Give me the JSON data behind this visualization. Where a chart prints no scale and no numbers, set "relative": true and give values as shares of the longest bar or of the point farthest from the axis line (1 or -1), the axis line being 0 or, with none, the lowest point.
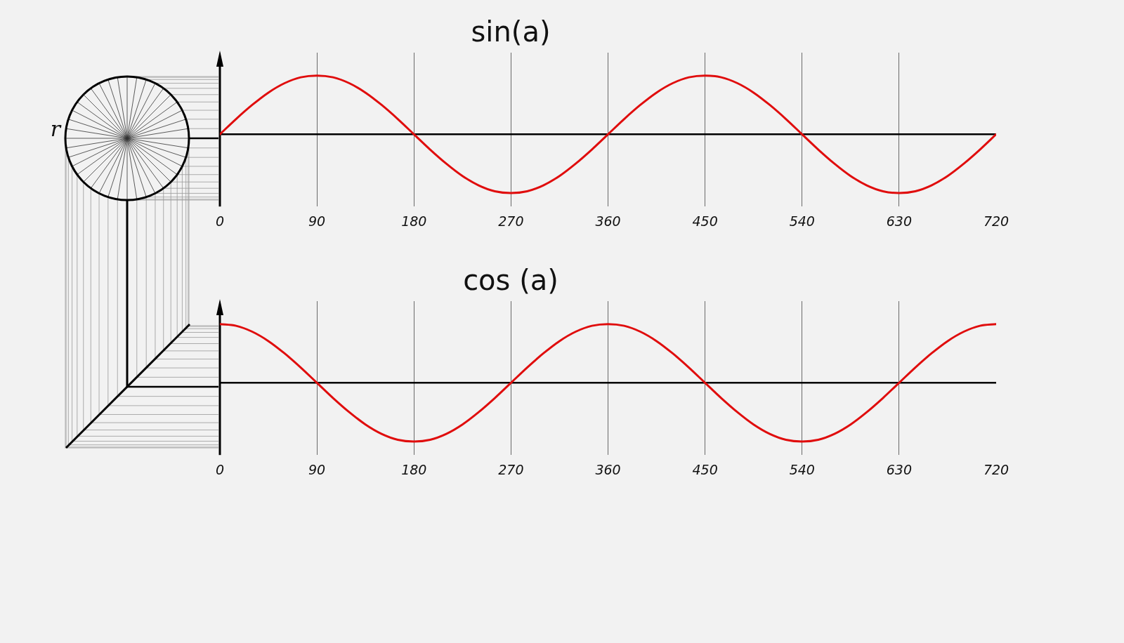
{
  "chart_data": [
    {
      "type": "line",
      "title": "sin(a)",
      "relative": true,
      "grid": "x",
      "xlim": [
        0,
        720
      ],
      "xticks": [
        0,
        90,
        180,
        270,
        360,
        450,
        540,
        630,
        720
      ],
      "annotations": [
        "r"
      ],
      "x": [
        0,
        15,
        30,
        45,
        60,
        75,
        90,
        105,
        120,
        135,
        150,
        165,
        180,
        195,
        210,
        225,
        240,
        255,
        270,
        285,
        300,
        315,
        330,
        345,
        360,
        375,
        390,
        405,
        420,
        435,
        450,
        465,
        480,
        495,
        510,
        525,
        540,
        555,
        570,
        585,
        600,
        615,
        630,
        645,
        660,
        675,
        690,
        705,
        720
      ],
      "series": [
        {
          "color": "#e00d0d",
          "values": [
            0,
            0.26,
            0.5,
            0.71,
            0.87,
            0.97,
            1,
            0.97,
            0.87,
            0.71,
            0.5,
            0.26,
            0,
            -0.26,
            -0.5,
            -0.71,
            -0.87,
            -0.97,
            -1,
            -0.97,
            -0.87,
            -0.71,
            -0.5,
            -0.26,
            0,
            0.26,
            0.5,
            0.71,
            0.87,
            0.97,
            1,
            0.97,
            0.87,
            0.71,
            0.5,
            0.26,
            0,
            -0.26,
            -0.5,
            -0.71,
            -0.87,
            -0.97,
            -1,
            -0.97,
            -0.87,
            -0.71,
            -0.5,
            -0.26,
            0
          ]
        }
      ]
    },
    {
      "type": "line",
      "title": "cos (a)",
      "relative": true,
      "grid": "x",
      "xlim": [
        0,
        720
      ],
      "xticks": [
        0,
        90,
        180,
        270,
        360,
        450,
        540,
        630,
        720
      ],
      "x": [
        0,
        15,
        30,
        45,
        60,
        75,
        90,
        105,
        120,
        135,
        150,
        165,
        180,
        195,
        210,
        225,
        240,
        255,
        270,
        285,
        300,
        315,
        330,
        345,
        360,
        375,
        390,
        405,
        420,
        435,
        450,
        465,
        480,
        495,
        510,
        525,
        540,
        555,
        570,
        585,
        600,
        615,
        630,
        645,
        660,
        675,
        690,
        705,
        720
      ],
      "series": [
        {
          "color": "#e00d0d",
          "values": [
            1,
            0.97,
            0.87,
            0.71,
            0.5,
            0.26,
            0,
            -0.26,
            -0.5,
            -0.71,
            -0.87,
            -0.97,
            -1,
            -0.97,
            -0.87,
            -0.71,
            -0.5,
            -0.26,
            0,
            0.26,
            0.5,
            0.71,
            0.87,
            0.97,
            1,
            0.97,
            0.87,
            0.71,
            0.5,
            0.26,
            0,
            -0.26,
            -0.5,
            -0.71,
            -0.87,
            -0.97,
            -1,
            -0.97,
            -0.87,
            -0.71,
            -0.5,
            -0.26,
            0,
            0.26,
            0.5,
            0.71,
            0.87,
            0.97,
            1
          ]
        }
      ]
    }
  ]
}
